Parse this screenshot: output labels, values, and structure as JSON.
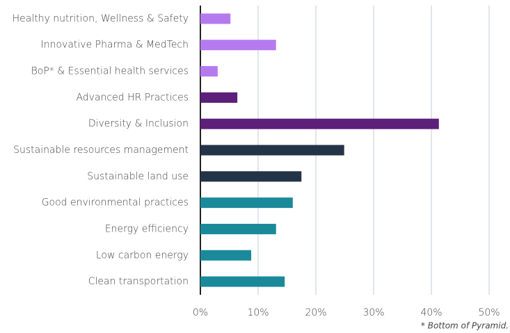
{
  "chart_data": {
    "type": "barh",
    "categories": [
      "Healthy nutrition, Wellness & Safety",
      "Innovative Pharma & MedTech",
      "BoP* & Essential health services",
      "Advanced HR Practices",
      "Diversity & Inclusion",
      "Sustainable resources management",
      "Sustainable land use",
      "Good environmental practices",
      "Energy efficiency",
      "Low carbon energy",
      "Clean transportation"
    ],
    "values": [
      5.2,
      13.1,
      3.0,
      6.4,
      41.3,
      24.9,
      17.5,
      16.0,
      13.1,
      8.8,
      14.6
    ],
    "colors": [
      "#b57bee",
      "#b57bee",
      "#b57bee",
      "#5c1f7a",
      "#5c1f7a",
      "#243447",
      "#243447",
      "#1a8a9a",
      "#1a8a9a",
      "#1a8a9a",
      "#1a8a9a"
    ],
    "xlim": [
      0,
      50
    ],
    "xticks": [
      {
        "value": 0,
        "label": "0%"
      },
      {
        "value": 10,
        "label": "10%"
      },
      {
        "value": 20,
        "label": "20%"
      },
      {
        "value": 30,
        "label": "30%"
      },
      {
        "value": 40,
        "label": "40%"
      },
      {
        "value": 50,
        "label": "50%"
      }
    ],
    "grid": true,
    "footnote": "* Bottom of Pyramid."
  }
}
